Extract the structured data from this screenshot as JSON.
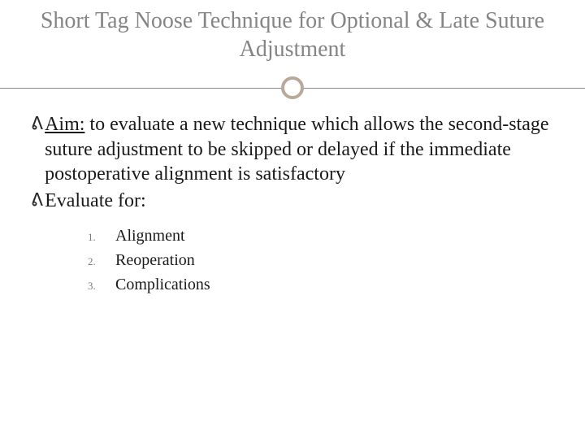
{
  "colors": {
    "title_color": "#858585",
    "body_color": "#1a1a1a",
    "divider_line": "#888888",
    "divider_ring": "#b9a99a",
    "number_color": "#7a7a7a",
    "background": "#ffffff"
  },
  "typography": {
    "title_fontsize": 28,
    "body_fontsize": 24,
    "numbered_fontsize": 20,
    "number_marker_fontsize": 13,
    "font_family": "Georgia, Times New Roman, serif"
  },
  "title": "Short Tag Noose Technique for Optional & Late Suture Adjustment",
  "bullets": [
    {
      "lead": "Aim:",
      "text": " to evaluate a new technique which allows the second-stage suture adjustment to be skipped or delayed if the immediate postoperative alignment is satisfactory"
    },
    {
      "lead": "",
      "text": "Evaluate for:"
    }
  ],
  "numbered": [
    {
      "n": "1.",
      "label": "Alignment"
    },
    {
      "n": "2.",
      "label": "Reoperation"
    },
    {
      "n": "3.",
      "label": "Complications"
    }
  ]
}
